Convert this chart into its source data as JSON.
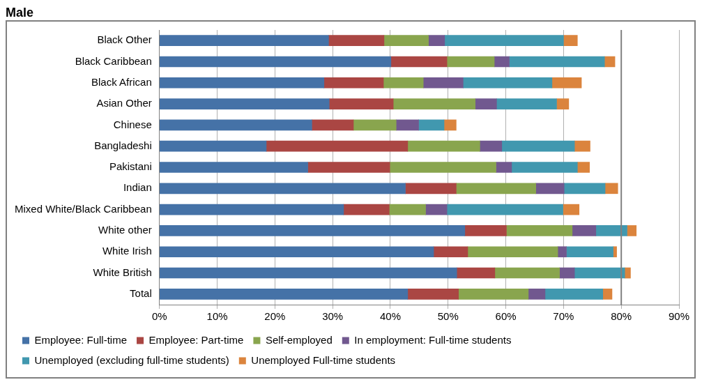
{
  "chart_data": {
    "type": "bar",
    "title": "Male",
    "orientation": "horizontal",
    "stacked": true,
    "categories": [
      "Black Other",
      "Black Caribbean",
      "Black African",
      "Asian Other",
      "Chinese",
      "Bangladeshi",
      "Pakistani",
      "Indian",
      "Mixed White/Black Caribbean",
      "White other",
      "White Irish",
      "White British",
      "Total"
    ],
    "series": [
      {
        "name": "Employee: Full-time",
        "color": "#4572a7",
        "values": [
          29.3,
          40.1,
          28.5,
          29.4,
          26.4,
          18.5,
          25.7,
          42.6,
          31.9,
          52.9,
          47.5,
          51.5,
          43.0
        ]
      },
      {
        "name": "Employee: Part-time",
        "color": "#aa4643",
        "values": [
          9.6,
          9.7,
          10.3,
          11.1,
          7.2,
          24.5,
          14.2,
          8.8,
          7.9,
          7.2,
          5.9,
          6.6,
          8.8
        ]
      },
      {
        "name": "Self-employed",
        "color": "#89a54e",
        "values": [
          7.7,
          8.2,
          6.9,
          14.2,
          7.4,
          12.5,
          18.4,
          13.8,
          6.3,
          11.4,
          15.6,
          11.2,
          12.1
        ]
      },
      {
        "name": "In employment: Full-time students",
        "color": "#71588f",
        "values": [
          2.8,
          2.6,
          6.9,
          3.7,
          3.9,
          3.8,
          2.7,
          4.9,
          3.7,
          4.1,
          1.5,
          2.6,
          2.9
        ]
      },
      {
        "name": "Unemployed (excluding full-time students)",
        "color": "#4198af",
        "values": [
          20.6,
          16.5,
          15.4,
          10.4,
          4.4,
          12.6,
          11.4,
          7.1,
          20.1,
          5.4,
          8.1,
          8.7,
          10.0
        ]
      },
      {
        "name": "Unemployed Full-time students",
        "color": "#db843d",
        "values": [
          2.4,
          1.8,
          5.1,
          2.1,
          2.1,
          2.7,
          2.1,
          2.2,
          2.8,
          1.6,
          0.6,
          1.0,
          1.6
        ]
      }
    ],
    "xlim": [
      0,
      90
    ],
    "xticks": [
      {
        "value": 0,
        "label": "0%"
      },
      {
        "value": 10,
        "label": "10%"
      },
      {
        "value": 20,
        "label": "20%"
      },
      {
        "value": 30,
        "label": "30%"
      },
      {
        "value": 40,
        "label": "40%"
      },
      {
        "value": 50,
        "label": "50%"
      },
      {
        "value": 60,
        "label": "60%"
      },
      {
        "value": 70,
        "label": "70%"
      },
      {
        "value": 80,
        "label": "80%"
      },
      {
        "value": 90,
        "label": "90%"
      }
    ],
    "ref_lines": [
      {
        "axis": "x",
        "value": 80,
        "color": "#808080"
      }
    ],
    "grid": "x",
    "legend": "bottom"
  }
}
